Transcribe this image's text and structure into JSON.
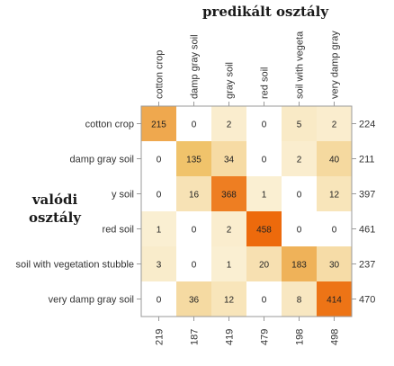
{
  "col_title": "predikált osztály",
  "row_title_line1": "valódi",
  "row_title_line2": "osztály",
  "chart_data": {
    "type": "heatmap",
    "title": "",
    "x_labels": [
      "cotton crop",
      "damp gray soil",
      "gray soil",
      "red soil",
      "soil with vegeta",
      "very damp gray"
    ],
    "y_labels": [
      "cotton crop",
      "damp gray soil",
      "y soil",
      "red soil",
      "soil with vegetation stubble",
      "very damp gray soil"
    ],
    "matrix": [
      [
        215,
        0,
        2,
        0,
        5,
        2
      ],
      [
        0,
        135,
        34,
        0,
        2,
        40
      ],
      [
        0,
        16,
        368,
        1,
        0,
        12
      ],
      [
        1,
        0,
        2,
        458,
        0,
        0
      ],
      [
        3,
        0,
        1,
        20,
        183,
        30
      ],
      [
        0,
        36,
        12,
        0,
        8,
        414
      ]
    ],
    "row_totals": [
      224,
      211,
      397,
      461,
      237,
      470
    ],
    "col_totals": [
      219,
      187,
      419,
      479,
      198,
      498
    ],
    "colors": {
      "low": "#ffffff",
      "mid": "#f0c26a",
      "high": "#ed6a0c"
    }
  }
}
